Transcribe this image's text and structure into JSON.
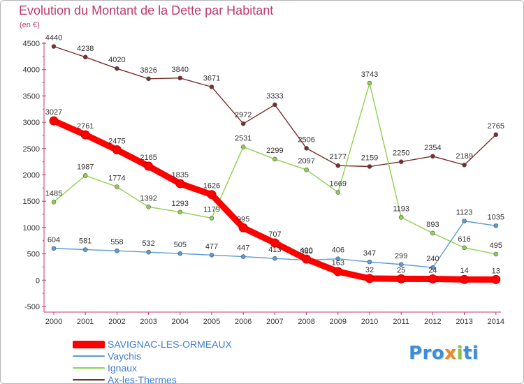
{
  "chart_data": {
    "type": "line",
    "title": "Evolution du Montant de la Dette par Habitant",
    "subtitle": "(en €)",
    "categories": [
      "2000",
      "2001",
      "2002",
      "2003",
      "2004",
      "2005",
      "2006",
      "2007",
      "2008",
      "2009",
      "2010",
      "2011",
      "2012",
      "2013",
      "2014"
    ],
    "ylim": [
      -500,
      4500
    ],
    "yticks": [
      -500,
      0,
      500,
      1000,
      1500,
      2000,
      2500,
      3000,
      3500,
      4000,
      4500
    ],
    "ytick_labels": [
      "-500",
      "0",
      "500",
      "1000",
      "1500",
      "2000",
      "2500",
      "3000",
      "3500",
      "4000",
      "4500"
    ],
    "grid": false,
    "legend_position": "bottom-left",
    "series": [
      {
        "name": "SAVIGNAC-LES-ORMEAUX",
        "color": "#ff0000",
        "values": [
          3027,
          2761,
          2475,
          2165,
          1835,
          1626,
          995,
          707,
          400,
          163,
          32,
          25,
          24,
          14,
          13
        ],
        "labels": [
          "3027",
          "2761",
          "2475",
          "2165",
          "1835",
          "1626",
          "995",
          "707",
          "400",
          "163",
          "32",
          "25",
          "24",
          "14",
          "13"
        ]
      },
      {
        "name": "Vaychis",
        "color": "#5b9bd5",
        "values": [
          604,
          581,
          558,
          532,
          505,
          477,
          447,
          413,
          380,
          406,
          347,
          299,
          240,
          1123,
          1035
        ],
        "labels": [
          "604",
          "581",
          "558",
          "532",
          "505",
          "477",
          "447",
          "413",
          "380",
          "406",
          "347",
          "299",
          "240",
          "1123",
          "1035"
        ]
      },
      {
        "name": "Ignaux",
        "color": "#8fd14f",
        "values": [
          1485,
          1987,
          1774,
          1392,
          1293,
          1179,
          2531,
          2299,
          2097,
          1669,
          3743,
          1193,
          893,
          616,
          495
        ],
        "labels": [
          "1485",
          "1987",
          "1774",
          "1392",
          "1293",
          "1179",
          "2531",
          "2299",
          "2097",
          "1669",
          "3743",
          "1193",
          "893",
          "616",
          "495"
        ]
      },
      {
        "name": "Ax-les-Thermes",
        "color": "#7a2e2e",
        "values": [
          4440,
          4238,
          4020,
          3826,
          3840,
          3671,
          2972,
          3333,
          2506,
          2177,
          2159,
          2250,
          2354,
          2189,
          2765
        ],
        "labels": [
          "4440",
          "4238",
          "4020",
          "3826",
          "3840",
          "3671",
          "2972",
          "3333",
          "2506",
          "2177",
          "2159",
          "2250",
          "2354",
          "2189",
          "2765"
        ]
      }
    ]
  },
  "legend": {
    "items": [
      {
        "label": "SAVIGNAC-LES-ORMEAUX",
        "color": "#ff0000"
      },
      {
        "label": "Vaychis",
        "color": "#5b9bd5"
      },
      {
        "label": "Ignaux",
        "color": "#8fd14f"
      },
      {
        "label": "Ax-les-Thermes",
        "color": "#7a2e2e"
      }
    ]
  },
  "logo": {
    "part1": "Pro",
    "part2": "x",
    "part3": "i",
    "part4": "ti"
  }
}
